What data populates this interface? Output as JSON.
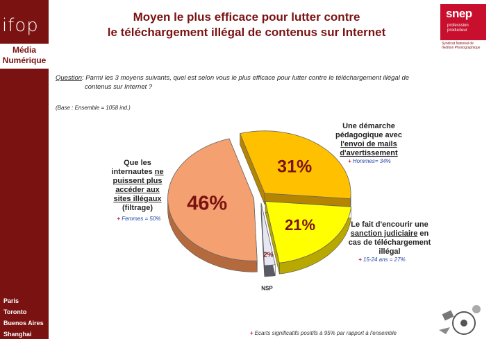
{
  "brand": {
    "logo": "ifop",
    "section_line1": "Média",
    "section_line2": "Numérique",
    "cities": [
      "Paris",
      "Toronto",
      "Buenos Aires",
      "Shanghai"
    ]
  },
  "partner": {
    "name": "snep",
    "tagline1": "professsion",
    "tagline2": "producteur",
    "subtitle1": "Syndicat National de",
    "subtitle2": "l'Edition Phonographique"
  },
  "title": {
    "line1": "Moyen le plus efficace pour lutter contre",
    "line2": "le téléchargement illégal de contenus sur Internet"
  },
  "question": {
    "label": "Question",
    "text": ":  Parmi les 3 moyens suivants, quel est selon vous le plus efficace pour lutter contre le téléchargement illégal de",
    "text2": "contenus sur Internet ?"
  },
  "base": "(Base : Ensemble = 1058 ind.)",
  "annotations": {
    "left": {
      "l1": "Que les",
      "l2a": "internautes ",
      "l2b": "ne",
      "l3": "puissent plus",
      "l4": "accéder aux",
      "l5": "sites illégaux",
      "l6": "(filtrage)",
      "sig": "Femmes = 50%"
    },
    "top": {
      "l1": "Une démarche",
      "l2": "pédagogique avec",
      "l3": "l'envoi de mails",
      "l4": "d'avertissement",
      "sig": "Hommes= 34%"
    },
    "right": {
      "l1": "Le fait d'encourir une",
      "l2": "sanction judiciaire",
      "l2b": " en",
      "l3": "cas de téléchargement",
      "l4": "illégal",
      "sig": "15-24 ans = 27%"
    }
  },
  "footnote": "Ecarts significatifs positifs à 95% par rapport à l'ensemble",
  "plus_sign": "+",
  "chart_data": {
    "type": "pie",
    "title": "Moyen le plus efficace pour lutter contre le téléchargement illégal de contenus sur Internet",
    "slices": [
      {
        "label": "Une démarche pédagogique avec l'envoi de mails d'avertissement",
        "value": 31,
        "display": "31%",
        "color": "#ffc000",
        "side": "#b58400",
        "exploded": true
      },
      {
        "label": "Le fait d'encourir une sanction judiciaire en cas de téléchargement illégal",
        "value": 21,
        "display": "21%",
        "color": "#ffff00",
        "side": "#b8a800",
        "exploded": true
      },
      {
        "label": "NSP",
        "value": 2,
        "display": "2%",
        "color": "#e6e6f5",
        "side": "#5a5a66",
        "exploded": true
      },
      {
        "label": "Que les internautes ne puissent plus accéder aux sites illégaux (filtrage)",
        "value": 46,
        "display": "46%",
        "color": "#f4a070",
        "side": "#b56a3e",
        "exploded": true
      }
    ],
    "label_color": "#7a1212",
    "legend": "none"
  }
}
